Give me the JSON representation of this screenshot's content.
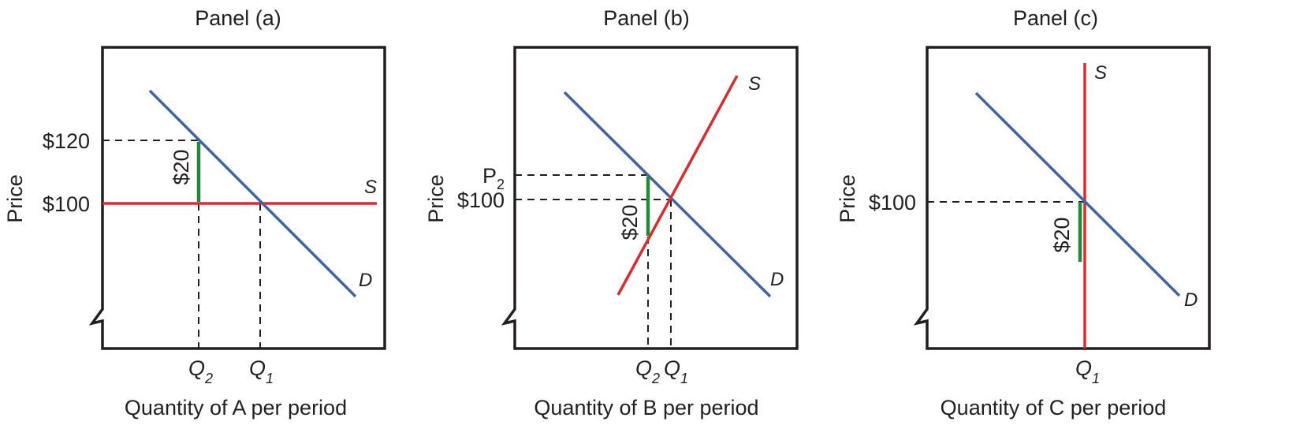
{
  "panels": [
    {
      "title": "Panel (a)",
      "y_axis": "Price",
      "x_axis": "Quantity of A per period",
      "price_labels": {
        "high": "$120",
        "low": "$100"
      },
      "tax_label": "$20",
      "q2": {
        "base": "Q",
        "sub": "2"
      },
      "q1": {
        "base": "Q",
        "sub": "1"
      },
      "supply_label": "S",
      "demand_label": "D"
    },
    {
      "title": "Panel (b)",
      "y_axis": "Price",
      "x_axis": "Quantity of B per period",
      "price_labels": {
        "p2_base": "P",
        "p2_sub": "2",
        "low": "$100"
      },
      "tax_label": "$20",
      "q2": {
        "base": "Q",
        "sub": "2"
      },
      "q1": {
        "base": "Q",
        "sub": "1"
      },
      "supply_label": "S",
      "demand_label": "D"
    },
    {
      "title": "Panel (c)",
      "y_axis": "Price",
      "x_axis": "Quantity of C per period",
      "price_labels": {
        "low": "$100"
      },
      "tax_label": "$20",
      "q1": {
        "base": "Q",
        "sub": "1"
      },
      "supply_label": "S",
      "demand_label": "D"
    }
  ],
  "colors": {
    "demand": "#3f63a6",
    "supply": "#dd2a2d",
    "tax": "#1f8a3a",
    "ink": "#231f20"
  }
}
